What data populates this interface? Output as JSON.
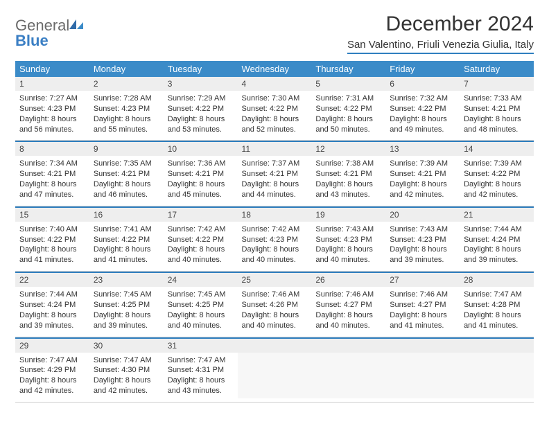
{
  "logo": {
    "general": "General",
    "blue": "Blue"
  },
  "title": "December 2024",
  "location": "San Valentino, Friuli Venezia Giulia, Italy",
  "colors": {
    "header_bg": "#3b8bc8",
    "header_text": "#ffffff",
    "rule": "#2f7fbf",
    "daynum_bg": "#eeeeee",
    "logo_gray": "#6a6a6a",
    "logo_blue": "#3b7fc4"
  },
  "weekdays": [
    "Sunday",
    "Monday",
    "Tuesday",
    "Wednesday",
    "Thursday",
    "Friday",
    "Saturday"
  ],
  "weeks": [
    [
      {
        "n": "1",
        "sunrise": "7:27 AM",
        "sunset": "4:23 PM",
        "daylight": "8 hours and 56 minutes."
      },
      {
        "n": "2",
        "sunrise": "7:28 AM",
        "sunset": "4:23 PM",
        "daylight": "8 hours and 55 minutes."
      },
      {
        "n": "3",
        "sunrise": "7:29 AM",
        "sunset": "4:22 PM",
        "daylight": "8 hours and 53 minutes."
      },
      {
        "n": "4",
        "sunrise": "7:30 AM",
        "sunset": "4:22 PM",
        "daylight": "8 hours and 52 minutes."
      },
      {
        "n": "5",
        "sunrise": "7:31 AM",
        "sunset": "4:22 PM",
        "daylight": "8 hours and 50 minutes."
      },
      {
        "n": "6",
        "sunrise": "7:32 AM",
        "sunset": "4:22 PM",
        "daylight": "8 hours and 49 minutes."
      },
      {
        "n": "7",
        "sunrise": "7:33 AM",
        "sunset": "4:21 PM",
        "daylight": "8 hours and 48 minutes."
      }
    ],
    [
      {
        "n": "8",
        "sunrise": "7:34 AM",
        "sunset": "4:21 PM",
        "daylight": "8 hours and 47 minutes."
      },
      {
        "n": "9",
        "sunrise": "7:35 AM",
        "sunset": "4:21 PM",
        "daylight": "8 hours and 46 minutes."
      },
      {
        "n": "10",
        "sunrise": "7:36 AM",
        "sunset": "4:21 PM",
        "daylight": "8 hours and 45 minutes."
      },
      {
        "n": "11",
        "sunrise": "7:37 AM",
        "sunset": "4:21 PM",
        "daylight": "8 hours and 44 minutes."
      },
      {
        "n": "12",
        "sunrise": "7:38 AM",
        "sunset": "4:21 PM",
        "daylight": "8 hours and 43 minutes."
      },
      {
        "n": "13",
        "sunrise": "7:39 AM",
        "sunset": "4:21 PM",
        "daylight": "8 hours and 42 minutes."
      },
      {
        "n": "14",
        "sunrise": "7:39 AM",
        "sunset": "4:22 PM",
        "daylight": "8 hours and 42 minutes."
      }
    ],
    [
      {
        "n": "15",
        "sunrise": "7:40 AM",
        "sunset": "4:22 PM",
        "daylight": "8 hours and 41 minutes."
      },
      {
        "n": "16",
        "sunrise": "7:41 AM",
        "sunset": "4:22 PM",
        "daylight": "8 hours and 41 minutes."
      },
      {
        "n": "17",
        "sunrise": "7:42 AM",
        "sunset": "4:22 PM",
        "daylight": "8 hours and 40 minutes."
      },
      {
        "n": "18",
        "sunrise": "7:42 AM",
        "sunset": "4:23 PM",
        "daylight": "8 hours and 40 minutes."
      },
      {
        "n": "19",
        "sunrise": "7:43 AM",
        "sunset": "4:23 PM",
        "daylight": "8 hours and 40 minutes."
      },
      {
        "n": "20",
        "sunrise": "7:43 AM",
        "sunset": "4:23 PM",
        "daylight": "8 hours and 39 minutes."
      },
      {
        "n": "21",
        "sunrise": "7:44 AM",
        "sunset": "4:24 PM",
        "daylight": "8 hours and 39 minutes."
      }
    ],
    [
      {
        "n": "22",
        "sunrise": "7:44 AM",
        "sunset": "4:24 PM",
        "daylight": "8 hours and 39 minutes."
      },
      {
        "n": "23",
        "sunrise": "7:45 AM",
        "sunset": "4:25 PM",
        "daylight": "8 hours and 39 minutes."
      },
      {
        "n": "24",
        "sunrise": "7:45 AM",
        "sunset": "4:25 PM",
        "daylight": "8 hours and 40 minutes."
      },
      {
        "n": "25",
        "sunrise": "7:46 AM",
        "sunset": "4:26 PM",
        "daylight": "8 hours and 40 minutes."
      },
      {
        "n": "26",
        "sunrise": "7:46 AM",
        "sunset": "4:27 PM",
        "daylight": "8 hours and 40 minutes."
      },
      {
        "n": "27",
        "sunrise": "7:46 AM",
        "sunset": "4:27 PM",
        "daylight": "8 hours and 41 minutes."
      },
      {
        "n": "28",
        "sunrise": "7:47 AM",
        "sunset": "4:28 PM",
        "daylight": "8 hours and 41 minutes."
      }
    ],
    [
      {
        "n": "29",
        "sunrise": "7:47 AM",
        "sunset": "4:29 PM",
        "daylight": "8 hours and 42 minutes."
      },
      {
        "n": "30",
        "sunrise": "7:47 AM",
        "sunset": "4:30 PM",
        "daylight": "8 hours and 42 minutes."
      },
      {
        "n": "31",
        "sunrise": "7:47 AM",
        "sunset": "4:31 PM",
        "daylight": "8 hours and 43 minutes."
      },
      {
        "empty": true
      },
      {
        "empty": true
      },
      {
        "empty": true
      },
      {
        "empty": true
      }
    ]
  ],
  "labels": {
    "sunrise": "Sunrise: ",
    "sunset": "Sunset: ",
    "daylight": "Daylight: "
  }
}
